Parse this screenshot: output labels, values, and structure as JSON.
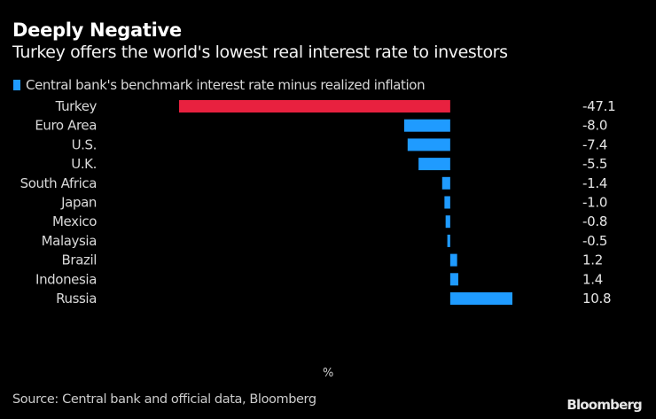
{
  "chart_data": {
    "type": "bar",
    "orientation": "horizontal",
    "title": "Deeply Negative",
    "subtitle": "Turkey offers the world's lowest real interest rate to investors",
    "legend": [
      {
        "label": "Central bank's benchmark interest rate minus realized inflation",
        "color": "#1f9bff"
      }
    ],
    "legend_position": "top-left",
    "categories": [
      "Turkey",
      "Euro Area",
      "U.S.",
      "U.K.",
      "South Africa",
      "Japan",
      "Mexico",
      "Malaysia",
      "Brazil",
      "Indonesia",
      "Russia"
    ],
    "values": [
      -47.1,
      -8.0,
      -7.4,
      -5.5,
      -1.4,
      -1.0,
      -0.8,
      -0.5,
      1.2,
      1.4,
      10.8
    ],
    "value_labels": [
      "-47.1",
      "-8.0",
      "-7.4",
      "-5.5",
      "-1.4",
      "-1.0",
      "-0.8",
      "-0.5",
      "1.2",
      "1.4",
      "10.8"
    ],
    "highlight": {
      "category": "Turkey",
      "color": "#e8213f"
    },
    "bar_color": "#1f9bff",
    "xlim": [
      -47.1,
      10.8
    ],
    "xlabel": "%",
    "ylabel": "",
    "grid": false
  },
  "footer": {
    "unit": "%",
    "source": "Source: Central bank and official data, Bloomberg",
    "brand": "Bloomberg"
  }
}
